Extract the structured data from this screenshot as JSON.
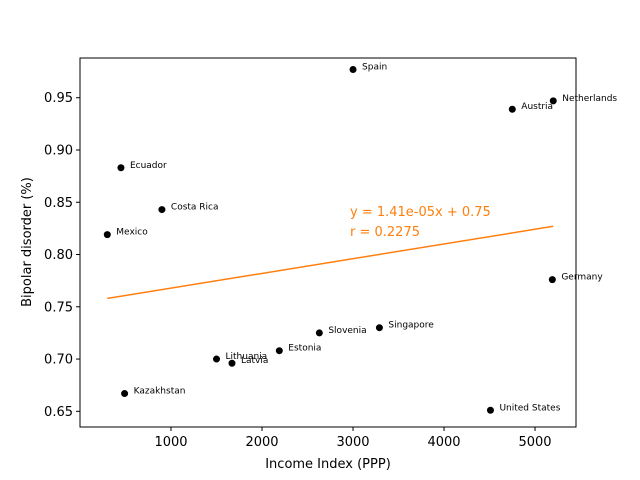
{
  "chart_data": {
    "type": "scatter",
    "title": "",
    "xlabel": "Income Index (PPP)",
    "ylabel": "Bipolar disorder (%)",
    "xlim": [
      0,
      5450
    ],
    "ylim": [
      0.635,
      0.988
    ],
    "xticks": [
      1000,
      2000,
      3000,
      4000,
      5000
    ],
    "yticks": [
      0.65,
      0.7,
      0.75,
      0.8,
      0.85,
      0.9,
      0.95
    ],
    "ytick_labels": [
      "0.65",
      "0.70",
      "0.75",
      "0.80",
      "0.85",
      "0.90",
      "0.95"
    ],
    "grid": false,
    "point_color": "#000000",
    "points": [
      {
        "label": "Spain",
        "x": 3000,
        "y": 0.977
      },
      {
        "label": "Netherlands",
        "x": 5200,
        "y": 0.947
      },
      {
        "label": "Austria",
        "x": 4750,
        "y": 0.939
      },
      {
        "label": "Ecuador",
        "x": 450,
        "y": 0.883
      },
      {
        "label": "Costa Rica",
        "x": 900,
        "y": 0.843
      },
      {
        "label": "Mexico",
        "x": 300,
        "y": 0.819
      },
      {
        "label": "Germany",
        "x": 5190,
        "y": 0.776
      },
      {
        "label": "Singapore",
        "x": 3290,
        "y": 0.73
      },
      {
        "label": "Slovenia",
        "x": 2630,
        "y": 0.725
      },
      {
        "label": "Estonia",
        "x": 2190,
        "y": 0.708
      },
      {
        "label": "Lithuania",
        "x": 1500,
        "y": 0.7
      },
      {
        "label": "Latvia",
        "x": 1670,
        "y": 0.696
      },
      {
        "label": "Kazakhstan",
        "x": 490,
        "y": 0.667
      },
      {
        "label": "United States",
        "x": 4510,
        "y": 0.651
      }
    ],
    "trendline": {
      "x": [
        300,
        5200
      ],
      "y": [
        0.758,
        0.827
      ],
      "color": "#ff7f0e",
      "equation_text": "y = 1.41e-05x + 0.75",
      "r_text": "r = 0.2275"
    }
  }
}
